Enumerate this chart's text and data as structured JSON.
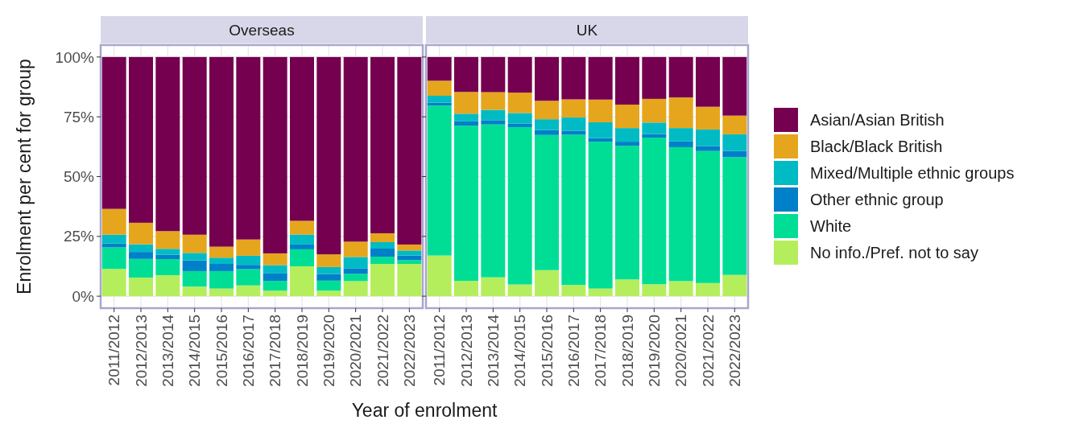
{
  "chart_data": [
    {
      "type": "bar",
      "title": "Overseas",
      "stacked": true,
      "xlabel": "Year of enrolment",
      "ylabel": "Enrolment per cent for group",
      "categories": [
        "2011/2012",
        "2012/2013",
        "2013/2014",
        "2014/2015",
        "2015/2016",
        "2016/2017",
        "2017/2018",
        "2018/2019",
        "2019/2020",
        "2020/2021",
        "2021/2022",
        "2022/2023"
      ],
      "series": [
        {
          "color": "#b5ee5c",
          "values": [
            11.4,
            7.8,
            8.8,
            4.0,
            3.2,
            4.5,
            2.3,
            12.5,
            2.3,
            6.3,
            13.5,
            13.5
          ]
        },
        {
          "color": "#00de96",
          "values": [
            9.0,
            7.8,
            6.7,
            6.5,
            7.3,
            6.8,
            4.1,
            7.1,
            4.2,
            3.0,
            3.0,
            1.6
          ]
        },
        {
          "color": "#0080c8",
          "values": [
            1.6,
            2.9,
            1.8,
            4.5,
            3.0,
            1.8,
            3.1,
            2.0,
            2.8,
            2.4,
            3.4,
            1.9
          ]
        },
        {
          "color": "#00bbc4",
          "values": [
            3.7,
            3.2,
            2.5,
            3.1,
            2.6,
            3.8,
            3.5,
            4.2,
            2.9,
            4.7,
            2.7,
            2.1
          ]
        },
        {
          "color": "#e5a61d",
          "values": [
            10.8,
            9.0,
            7.4,
            7.6,
            4.6,
            6.8,
            4.9,
            5.7,
            5.3,
            6.4,
            3.7,
            2.5
          ]
        },
        {
          "color": "#750050",
          "values": [
            63.5,
            69.3,
            72.8,
            74.3,
            79.3,
            76.3,
            82.1,
            68.5,
            82.5,
            77.2,
            73.7,
            78.4
          ]
        }
      ],
      "ylim": [
        -5,
        105
      ],
      "yticks": [
        {
          "value": 0,
          "label": "0%"
        },
        {
          "value": 25,
          "label": "25%"
        },
        {
          "value": 50,
          "label": "50%"
        },
        {
          "value": 75,
          "label": "75%"
        },
        {
          "value": 100,
          "label": "100%"
        }
      ],
      "grid": true
    },
    {
      "type": "bar",
      "title": "UK",
      "stacked": true,
      "categories": [
        "2011/2012",
        "2012/2013",
        "2013/2014",
        "2014/2015",
        "2015/2016",
        "2016/2017",
        "2017/2018",
        "2018/2019",
        "2019/2020",
        "2020/2021",
        "2021/2022",
        "2022/2023"
      ],
      "series": [
        {
          "name": "No info./Pref. not to say",
          "color": "#b5ee5c",
          "values": [
            17.0,
            6.4,
            7.9,
            4.9,
            10.9,
            4.7,
            3.2,
            7.0,
            5.0,
            6.3,
            5.5,
            8.9
          ]
        },
        {
          "name": "White",
          "color": "#00de96",
          "values": [
            62.7,
            64.9,
            63.9,
            65.8,
            56.5,
            62.8,
            61.4,
            55.9,
            61.3,
            56.0,
            55.2,
            49.2
          ]
        },
        {
          "name": "Other ethnic group",
          "color": "#0080c8",
          "values": [
            1.2,
            1.8,
            1.8,
            1.5,
            2.1,
            1.7,
            1.5,
            1.7,
            1.5,
            2.4,
            2.1,
            2.6
          ]
        },
        {
          "name": "Mixed/Multiple ethnic groups",
          "color": "#00bbc4",
          "values": [
            2.9,
            3.2,
            4.3,
            4.4,
            4.5,
            5.5,
            6.6,
            5.7,
            4.8,
            5.6,
            6.9,
            7.0
          ]
        },
        {
          "name": "Black/Black British",
          "color": "#e5a61d",
          "values": [
            6.3,
            9.1,
            7.4,
            8.5,
            7.7,
            7.6,
            9.5,
            9.8,
            9.9,
            12.8,
            9.5,
            7.8
          ]
        },
        {
          "name": "Asian/Asian British",
          "color": "#750050",
          "values": [
            9.9,
            14.6,
            14.7,
            14.9,
            18.3,
            17.7,
            17.8,
            19.9,
            17.5,
            16.9,
            20.8,
            24.5
          ]
        }
      ],
      "ylim": [
        -5,
        105
      ],
      "yticks": [
        {
          "value": 0,
          "label": null
        },
        {
          "value": 25,
          "label": null
        },
        {
          "value": 50,
          "label": null
        },
        {
          "value": 75,
          "label": null
        },
        {
          "value": 100,
          "label": null
        }
      ],
      "grid": true,
      "tick_labels": "x",
      "legend": "right"
    }
  ]
}
